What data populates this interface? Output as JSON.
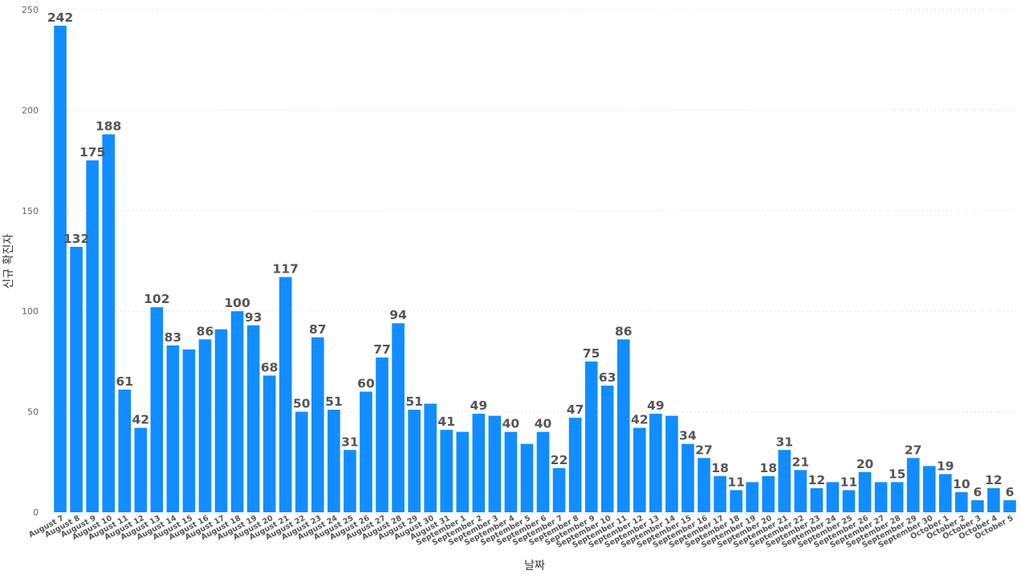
{
  "chart_data": {
    "type": "bar",
    "title": "",
    "xlabel": "날짜",
    "ylabel": "신규 확진자",
    "ylim": [
      0,
      250
    ],
    "yticks": [
      0,
      50,
      100,
      150,
      200,
      250
    ],
    "grid": true,
    "bar_color": "#118dff",
    "categories": [
      "August 7",
      "August 8",
      "August 9",
      "August 10",
      "August 11",
      "August 12",
      "August 13",
      "August 14",
      "August 15",
      "August 16",
      "August 17",
      "August 18",
      "August 19",
      "August 20",
      "August 21",
      "August 22",
      "August 23",
      "August 24",
      "August 25",
      "August 26",
      "August 27",
      "August 28",
      "August 29",
      "August 30",
      "August 31",
      "September 1",
      "September 2",
      "September 3",
      "September 4",
      "September 5",
      "September 6",
      "September 7",
      "September 8",
      "September 9",
      "September 10",
      "September 11",
      "September 12",
      "September 13",
      "September 14",
      "September 15",
      "September 16",
      "September 17",
      "September 18",
      "September 19",
      "September 20",
      "September 21",
      "September 22",
      "September 23",
      "September 24",
      "September 25",
      "September 26",
      "September 27",
      "September 28",
      "September 29",
      "September 30",
      "October 1",
      "October 2",
      "October 3",
      "October 4",
      "October 5"
    ],
    "values": [
      242,
      132,
      175,
      188,
      61,
      42,
      102,
      83,
      81,
      86,
      91,
      100,
      93,
      68,
      117,
      50,
      87,
      51,
      31,
      60,
      77,
      94,
      51,
      54,
      41,
      40,
      49,
      48,
      40,
      34,
      40,
      22,
      47,
      75,
      63,
      86,
      42,
      49,
      48,
      34,
      27,
      18,
      11,
      15,
      18,
      31,
      21,
      12,
      15,
      11,
      20,
      15,
      15,
      27,
      23,
      19,
      10,
      6,
      12,
      6
    ],
    "show_label": [
      true,
      true,
      true,
      true,
      true,
      true,
      true,
      true,
      false,
      true,
      false,
      true,
      true,
      true,
      true,
      true,
      true,
      true,
      true,
      true,
      true,
      true,
      true,
      false,
      true,
      false,
      true,
      false,
      true,
      false,
      true,
      true,
      true,
      true,
      true,
      true,
      true,
      true,
      false,
      true,
      true,
      true,
      true,
      false,
      true,
      true,
      true,
      true,
      false,
      true,
      true,
      false,
      true,
      true,
      false,
      true,
      true,
      true,
      true,
      true
    ]
  }
}
